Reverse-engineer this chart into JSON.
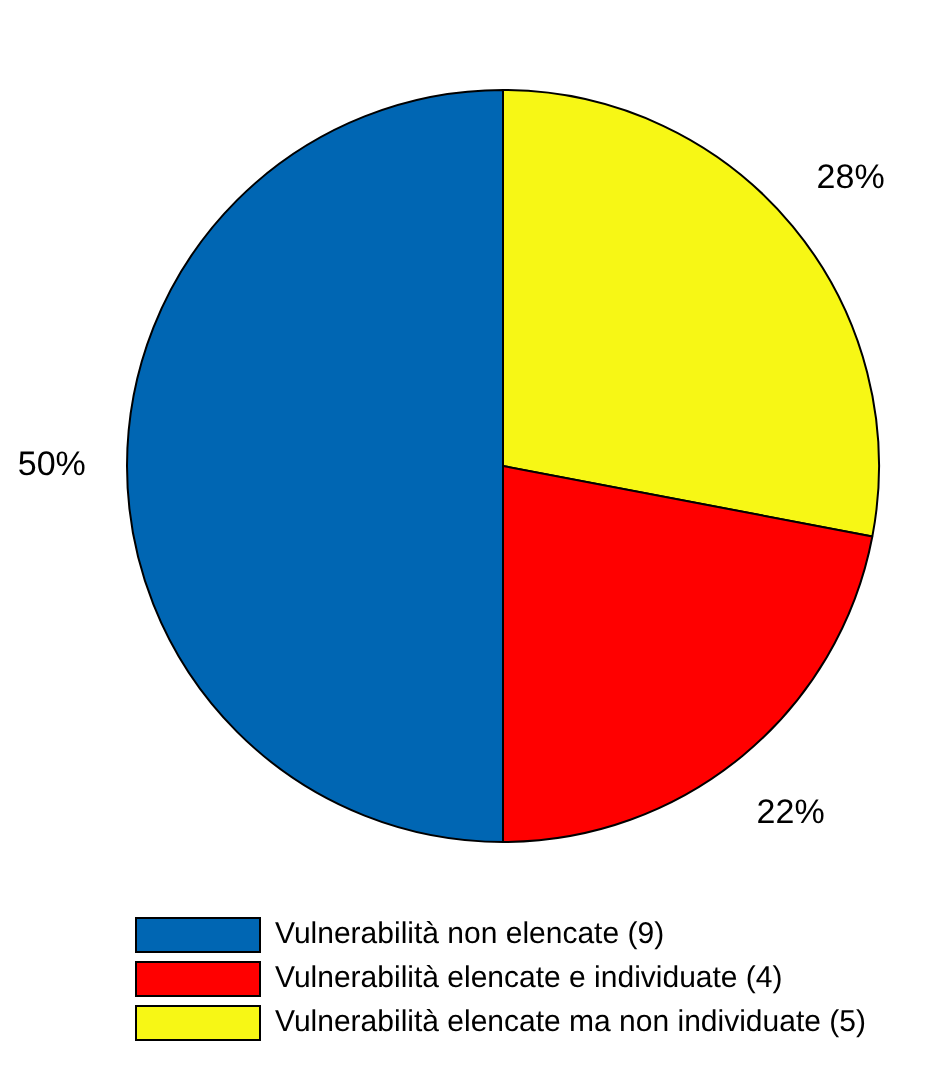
{
  "chart_data": {
    "type": "pie",
    "categories": [
      "Vulnerabilità non elencate (9)",
      "Vulnerabilità elencate e individuate (4)",
      "Vulnerabilità elencate ma non individuate (5)"
    ],
    "values": [
      50,
      22,
      28
    ],
    "colors": [
      "#0066b3",
      "#ff0000",
      "#f7f715"
    ],
    "value_labels": [
      "50%",
      "22%",
      "28%"
    ],
    "legend": "bottom"
  }
}
